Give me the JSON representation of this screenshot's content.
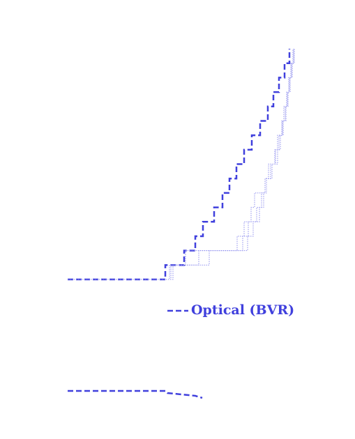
{
  "chart_data": [
    {
      "type": "step",
      "xlim": [
        90,
        430
      ],
      "ylim": [
        0,
        16
      ],
      "legend": "center",
      "series": [
        {
          "name": "Optical (BVR)",
          "color": "#4040dd",
          "style": "dashed",
          "x": [
            97,
            237,
            264,
            280,
            291,
            307,
            319,
            329,
            339,
            350,
            361,
            373,
            384,
            392,
            400,
            408,
            415
          ],
          "values": [
            0,
            1,
            2,
            3,
            4,
            5,
            6,
            7,
            8,
            9,
            10,
            11,
            12,
            13,
            14,
            15,
            16
          ]
        },
        {
          "color": "#9090ee",
          "style": "dotted",
          "x": [
            97,
            245,
            285,
            340,
            350,
            360,
            365,
            380,
            385,
            395,
            400,
            405,
            410,
            412,
            415,
            418,
            420
          ],
          "values": [
            0,
            1,
            2,
            3,
            4,
            5,
            6,
            7,
            8,
            9,
            10,
            11,
            12,
            13,
            14,
            15,
            16
          ]
        },
        {
          "color": "#9090ee",
          "style": "dotted",
          "x": [
            97,
            248,
            300,
            355,
            363,
            372,
            378,
            382,
            390,
            398,
            402,
            406,
            409,
            413,
            416,
            419,
            421
          ],
          "values": [
            0,
            1,
            2,
            3,
            4,
            5,
            6,
            7,
            8,
            9,
            10,
            11,
            12,
            13,
            14,
            15,
            16
          ]
        },
        {
          "color": "#9090ee",
          "style": "dotted",
          "x": [
            97,
            243,
            266,
            348,
            356,
            368,
            375,
            380,
            388,
            394,
            398,
            404,
            407,
            411,
            414,
            417,
            422
          ],
          "values": [
            0,
            1,
            2,
            3,
            4,
            5,
            6,
            7,
            8,
            9,
            10,
            11,
            12,
            13,
            14,
            15,
            16
          ]
        }
      ]
    },
    {
      "type": "line",
      "xlim": [
        90,
        430
      ],
      "ylim": [
        0,
        1
      ],
      "series": [
        {
          "color": "#4040dd",
          "style": "dashed",
          "x": [
            97,
            237,
            240,
            280,
            290
          ],
          "values": [
            0.75,
            0.75,
            0.6,
            0.4,
            0.25
          ]
        }
      ]
    }
  ]
}
